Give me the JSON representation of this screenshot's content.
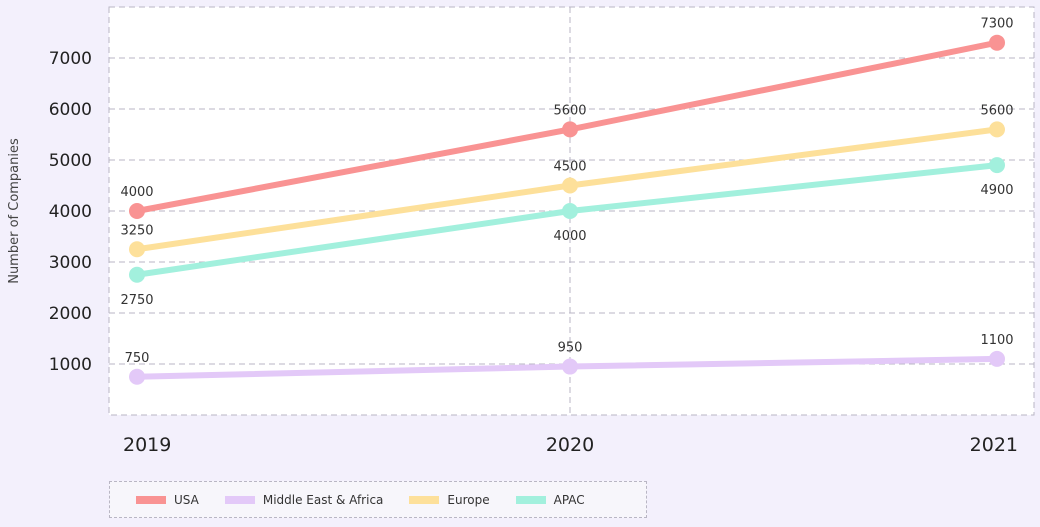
{
  "chart_data": {
    "type": "line",
    "x": [
      "2019",
      "2020",
      "2021"
    ],
    "ylabel": "Number of Companies",
    "y_ticks": [
      1000,
      2000,
      3000,
      4000,
      5000,
      6000,
      7000
    ],
    "ylim": [
      0,
      7600
    ],
    "grid": true,
    "legend_position": "bottom-left",
    "series": [
      {
        "name": "USA",
        "color": "#f99393",
        "values": [
          4000,
          5600,
          7300
        ]
      },
      {
        "name": "Middle East & Africa",
        "color": "#e3c9f8",
        "values": [
          750,
          950,
          1100
        ]
      },
      {
        "name": "Europe",
        "color": "#fde09a",
        "values": [
          3250,
          4500,
          5600
        ]
      },
      {
        "name": "APAC",
        "color": "#a2f0dd",
        "values": [
          2750,
          4000,
          4900
        ]
      }
    ],
    "label_display": [
      {
        "series": "USA",
        "labels": [
          "4000",
          "5600",
          "7300"
        ]
      },
      {
        "series": "Middle East & Africa",
        "labels": [
          "750",
          "950",
          "1100"
        ]
      },
      {
        "series": "Europe",
        "labels": [
          "3250",
          "4500",
          "5600"
        ]
      },
      {
        "series": "APAC",
        "labels": [
          "2750",
          "4000",
          "4900"
        ]
      }
    ]
  }
}
